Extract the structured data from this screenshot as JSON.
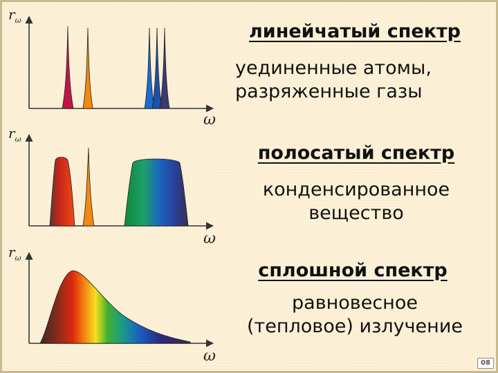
{
  "axis": {
    "y_label": "r",
    "y_subscript": "ω",
    "x_label": "ω"
  },
  "panels": [
    {
      "title": "линейчатый спектр",
      "desc_line1": "уединенные атомы,",
      "desc_line2": "разряженные газы"
    },
    {
      "title": "полосатый спектр",
      "desc_line1": "конденсированное",
      "desc_line2": "вещество"
    },
    {
      "title": "сплошной спектр",
      "desc_line1": "равновесное",
      "desc_line2": "(тепловое) излучение"
    }
  ],
  "page_number": "08",
  "colors": {
    "background": "#fdf2d8",
    "axis": "#333333",
    "red": "#e0201a",
    "crimson": "#c0144a",
    "orange": "#f08a10",
    "yellow": "#f5e020",
    "green": "#1a9a30",
    "blue": "#1860c0",
    "violet": "#303070"
  }
}
